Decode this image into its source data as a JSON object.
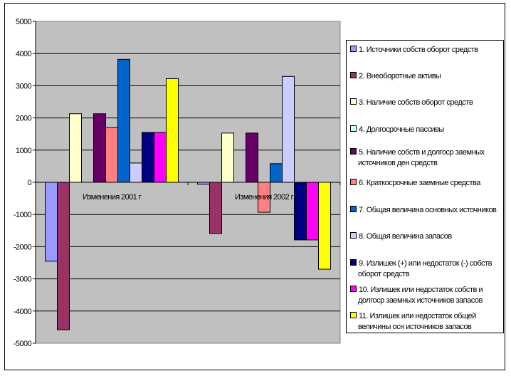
{
  "chart_data": {
    "type": "bar",
    "title": "",
    "xlabel": "",
    "ylabel": "",
    "ylim": [
      -5000,
      5000
    ],
    "yticks": [
      "5000",
      "4000",
      "3000",
      "2000",
      "1000",
      "0",
      "-1000",
      "-2000",
      "-3000",
      "-4000",
      "-5000"
    ],
    "categories": [
      "Изменения  2001 г",
      "Изменения  2002 г"
    ],
    "grid": true,
    "legend_position": "right",
    "series": [
      {
        "name": "1. Источники  собств оборот средств",
        "color": "#9999FF",
        "values": [
          -2450,
          -60
        ]
      },
      {
        "name": "2. Внеоборотные активы",
        "color": "#993366",
        "values": [
          -4580,
          -1590
        ]
      },
      {
        "name": "3. Наличие собств оборот средств",
        "color": "#FFFFCC",
        "values": [
          2130,
          1530
        ]
      },
      {
        "name": "4. Долгосрочные пассивы",
        "color": "#CCFFFF",
        "values": [
          0,
          0
        ]
      },
      {
        "name": "5. Наличие собств и долгоср заемных",
        "name2": "источников ден средств",
        "color": "#660066",
        "values": [
          2130,
          1530
        ]
      },
      {
        "name": "6. Краткосрочные заемные средства",
        "color": "#FF8080",
        "values": [
          1700,
          -930
        ]
      },
      {
        "name": "7. Общая величина основных источников",
        "color": "#0066CC",
        "values": [
          3820,
          580
        ]
      },
      {
        "name": "8. Общая величина запасов",
        "color": "#CCCCFF",
        "values": [
          600,
          3290
        ]
      },
      {
        "name": "9. Излишек (+) или недостаток (-) собств",
        "name2": "оборот средств",
        "color": "#000080",
        "values": [
          1550,
          -1790
        ]
      },
      {
        "name": "10. Излишек  или недостаток  собств и",
        "name2": "долгоср заемных источников  запасов",
        "color": "#FF00FF",
        "values": [
          1550,
          -1790
        ]
      },
      {
        "name": "11. Излишек или недостаток  общей",
        "name2": "величины осн источников  запасов",
        "color": "#FFFF00",
        "values": [
          3220,
          -2700
        ]
      }
    ]
  }
}
